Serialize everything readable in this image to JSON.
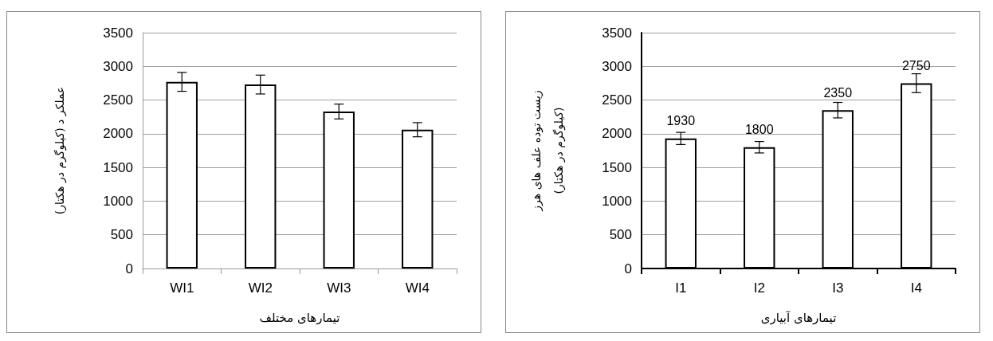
{
  "chart_data": [
    {
      "type": "bar",
      "xlabel": "تیمارهای مختلف",
      "ylabel": "عملکر د (کیلوگرم در هکتار)",
      "categories": [
        "WI1",
        "WI2",
        "WI3",
        "WI4"
      ],
      "values": [
        2770,
        2730,
        2330,
        2060
      ],
      "errors": [
        140,
        140,
        110,
        105
      ],
      "color": "#ffffff",
      "ylim": [
        0,
        3500
      ],
      "yticks": [
        0,
        500,
        1000,
        1500,
        2000,
        2500,
        3000,
        3500
      ],
      "grid": "y"
    },
    {
      "type": "bar",
      "xlabel": "تیمارهای آبیاری",
      "ylabel": "زیست توده علف های هرز\n(کیلوگرم در هکتار)",
      "categories": [
        "I1",
        "I2",
        "I3",
        "I4"
      ],
      "values": [
        1930,
        1800,
        2350,
        2750
      ],
      "errors": [
        90,
        85,
        115,
        140
      ],
      "color": "#ffffff",
      "ylim": [
        0,
        3500
      ],
      "yticks": [
        0,
        500,
        1000,
        1500,
        2000,
        2500,
        3000,
        3500
      ],
      "grid": "y",
      "data_labels": true
    }
  ]
}
